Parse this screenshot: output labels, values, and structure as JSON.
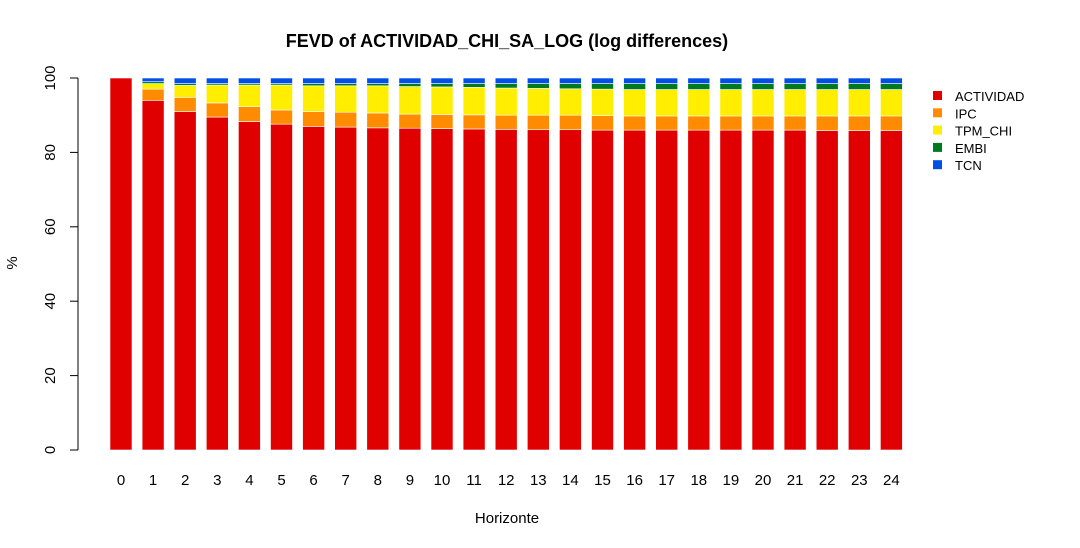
{
  "chart_data": {
    "type": "bar",
    "stacked": true,
    "title": "FEVD of ACTIVIDAD_CHI_SA_LOG (log differences)",
    "xlabel": "Horizonte",
    "ylabel": "%",
    "ylim": [
      0,
      100
    ],
    "yticks": [
      0,
      20,
      40,
      60,
      80,
      100
    ],
    "legend_position": "right",
    "categories": [
      "0",
      "1",
      "2",
      "3",
      "4",
      "5",
      "6",
      "7",
      "8",
      "9",
      "10",
      "11",
      "12",
      "13",
      "14",
      "15",
      "16",
      "17",
      "18",
      "19",
      "20",
      "21",
      "22",
      "23",
      "24"
    ],
    "series": [
      {
        "name": "ACTIVIDAD",
        "color": "#e00000",
        "values": [
          100,
          94.0,
          91.0,
          89.5,
          88.3,
          87.6,
          87.0,
          86.8,
          86.6,
          86.5,
          86.4,
          86.3,
          86.2,
          86.1,
          86.1,
          86.0,
          86.0,
          86.0,
          86.0,
          86.0,
          86.0,
          86.0,
          85.9,
          85.9,
          85.9
        ]
      },
      {
        "name": "IPC",
        "color": "#ff8c00",
        "values": [
          0,
          3.0,
          3.8,
          3.8,
          4.0,
          3.8,
          4.0,
          4.0,
          4.0,
          3.8,
          3.8,
          3.8,
          3.8,
          3.9,
          3.9,
          3.9,
          3.8,
          3.8,
          3.8,
          3.8,
          3.8,
          3.8,
          3.9,
          3.9,
          3.9
        ]
      },
      {
        "name": "TPM_CHI",
        "color": "#ffee00",
        "values": [
          0,
          1.5,
          3.2,
          4.8,
          5.8,
          6.7,
          6.9,
          7.1,
          7.3,
          7.4,
          7.4,
          7.4,
          7.3,
          7.2,
          7.1,
          7.1,
          7.1,
          7.1,
          7.1,
          7.1,
          7.1,
          7.1,
          7.1,
          7.1,
          7.1
        ]
      },
      {
        "name": "EMBI",
        "color": "#007a1f",
        "values": [
          0,
          0.5,
          0.5,
          0.4,
          0.4,
          0.4,
          0.6,
          0.6,
          0.6,
          0.8,
          0.9,
          1.0,
          1.2,
          1.3,
          1.4,
          1.5,
          1.6,
          1.6,
          1.6,
          1.6,
          1.6,
          1.6,
          1.6,
          1.6,
          1.6
        ]
      },
      {
        "name": "TCN",
        "color": "#0050e6",
        "values": [
          0,
          1.0,
          1.5,
          1.5,
          1.5,
          1.5,
          1.5,
          1.5,
          1.5,
          1.5,
          1.5,
          1.5,
          1.5,
          1.5,
          1.5,
          1.5,
          1.5,
          1.5,
          1.5,
          1.5,
          1.5,
          1.5,
          1.5,
          1.5,
          1.5
        ]
      }
    ]
  }
}
